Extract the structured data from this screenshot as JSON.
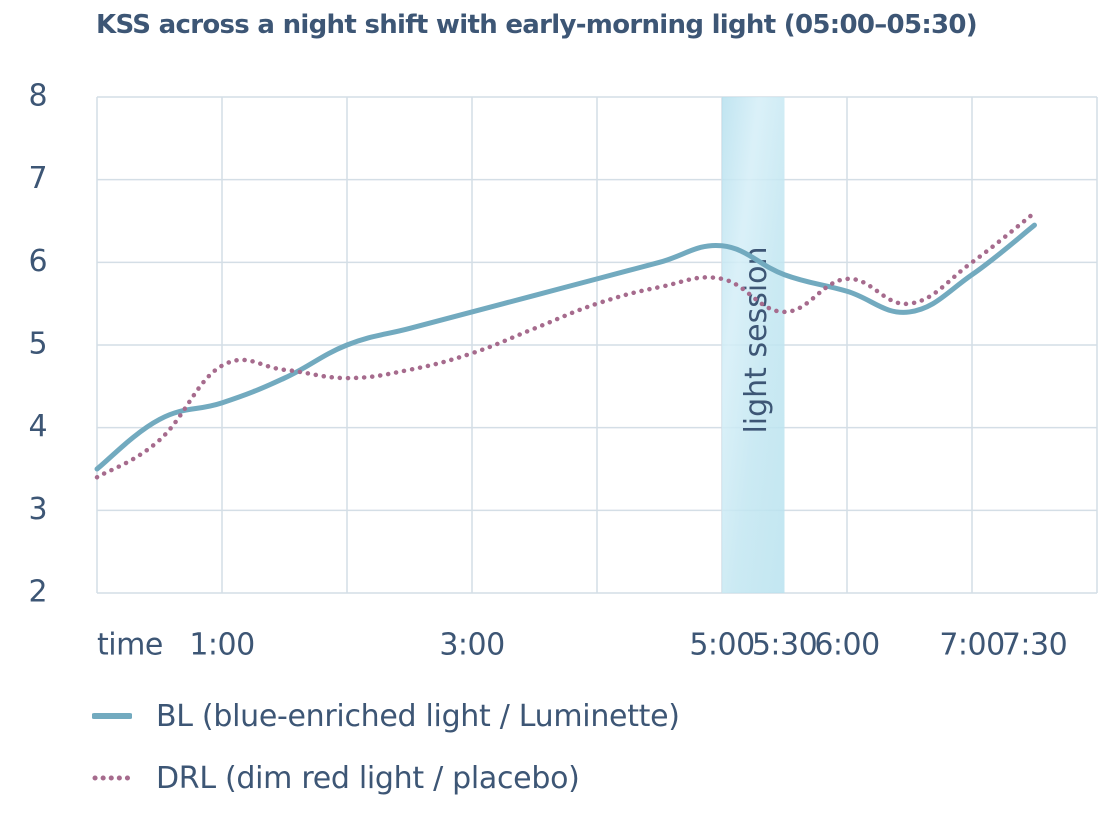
{
  "chart_data": {
    "type": "line",
    "title": "KSS across a night shift with early-morning light (05:00–05:30)",
    "xlabel": "time",
    "ylabel": "",
    "x_unit": "hours",
    "xlim": [
      0,
      8
    ],
    "ylim": [
      2,
      8
    ],
    "yticks": [
      2,
      3,
      4,
      5,
      6,
      7,
      8
    ],
    "x_ticks": [
      {
        "x": 1,
        "label": "1:00"
      },
      {
        "x": 3,
        "label": "3:00"
      },
      {
        "x": 5,
        "label": "5:00"
      },
      {
        "x": 5.5,
        "label": "5:30"
      },
      {
        "x": 6,
        "label": "6:00"
      },
      {
        "x": 7,
        "label": "7:00"
      },
      {
        "x": 7.5,
        "label": "7:30"
      }
    ],
    "x_gridlines": [
      1,
      2,
      3,
      4,
      5,
      6,
      7
    ],
    "grid": true,
    "legend_position": "bottom",
    "shaded_region": {
      "x_start": 5.0,
      "x_end": 5.5,
      "label": "light session"
    },
    "series": [
      {
        "name": "BL (blue-enriched light / Luminette)",
        "color": "#72aabf",
        "style": "solid",
        "x": [
          0,
          0.5,
          1.0,
          1.5,
          2.0,
          2.5,
          3.0,
          3.5,
          4.0,
          4.5,
          5.0,
          5.5,
          6.0,
          6.5,
          7.0,
          7.5
        ],
        "y": [
          3.5,
          4.1,
          4.3,
          4.6,
          5.0,
          5.2,
          5.4,
          5.6,
          5.8,
          6.0,
          6.2,
          5.85,
          5.65,
          5.4,
          5.85,
          6.45
        ]
      },
      {
        "name": "DRL (dim red light / placebo)",
        "color": "#a66b8d",
        "style": "dotted",
        "x": [
          0,
          0.5,
          1.0,
          1.5,
          2.0,
          2.5,
          3.0,
          3.5,
          4.0,
          4.5,
          5.0,
          5.5,
          6.0,
          6.5,
          7.0,
          7.5
        ],
        "y": [
          3.4,
          3.85,
          4.75,
          4.7,
          4.6,
          4.7,
          4.9,
          5.2,
          5.5,
          5.7,
          5.8,
          5.4,
          5.8,
          5.5,
          6.0,
          6.6
        ]
      }
    ]
  }
}
